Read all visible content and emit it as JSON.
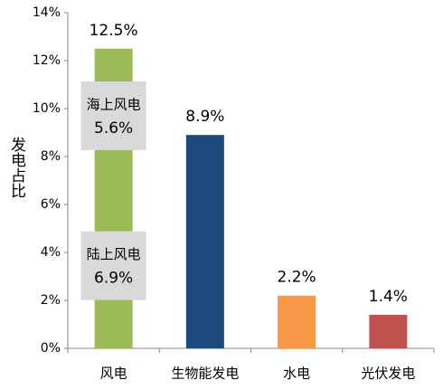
{
  "chart_data": {
    "type": "bar",
    "y_label": "发电占比",
    "categories": [
      "风电",
      "生物能发电",
      "水电",
      "光伏发电"
    ],
    "values": [
      12.5,
      8.9,
      2.2,
      1.4
    ],
    "value_labels": [
      "12.5%",
      "8.9%",
      "2.2%",
      "1.4%"
    ],
    "colors": [
      "#9bbb59",
      "#1f497d",
      "#f79646",
      "#c0504d"
    ],
    "segments": [
      {
        "name": "陆上风电",
        "value": 6.9,
        "value_label": "6.9%"
      },
      {
        "name": "海上风电",
        "value": 5.6,
        "value_label": "5.6%"
      }
    ],
    "ylim": [
      0,
      14
    ],
    "yticks": [
      {
        "value": 0,
        "label": "0%"
      },
      {
        "value": 2,
        "label": "2%"
      },
      {
        "value": 4,
        "label": "4%"
      },
      {
        "value": 6,
        "label": "6%"
      },
      {
        "value": 8,
        "label": "8%"
      },
      {
        "value": 10,
        "label": "10%"
      },
      {
        "value": 12,
        "label": "12%"
      },
      {
        "value": 14,
        "label": "14%"
      }
    ]
  }
}
